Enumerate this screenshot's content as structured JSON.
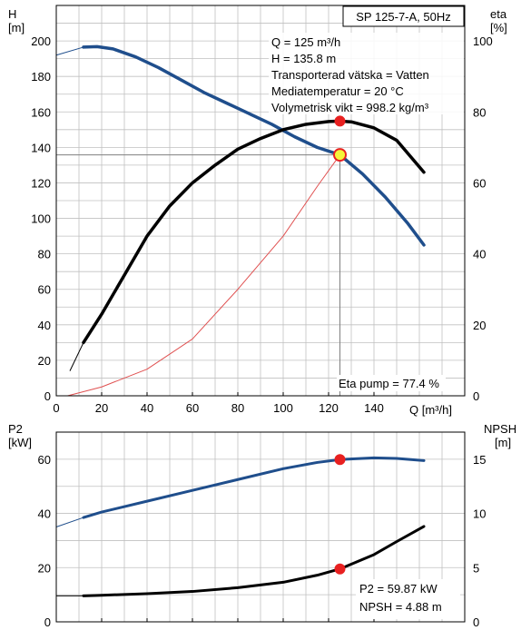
{
  "colors": {
    "head": "#1f4e8c",
    "efficiency": "#000000",
    "system_curve": "#e05050",
    "marker": "#e82020",
    "marker_duty": "#f5f53a",
    "grid": "#c0c0c0",
    "ref_line": "#808080"
  },
  "chart_data": [
    {
      "type": "line",
      "title": "SP 125-7-A, 50Hz",
      "xlabel": "Q [m³/h]",
      "xlim": [
        0,
        180
      ],
      "x_ticks": [
        0,
        20,
        40,
        60,
        80,
        100,
        120,
        140
      ],
      "left_axis": {
        "label_top": "H",
        "label_unit": "[m]",
        "ylim": [
          0,
          220
        ],
        "ticks": [
          0,
          20,
          40,
          60,
          80,
          100,
          120,
          140,
          160,
          180,
          200
        ]
      },
      "right_axis": {
        "label_top": "eta",
        "label_unit": "[%]",
        "ylim": [
          0,
          110
        ],
        "ticks": [
          0,
          20,
          40,
          60,
          80,
          100
        ]
      },
      "grid": true,
      "info_lines": [
        "Q = 125 m³/h",
        "H = 135.8 m",
        "Transporterad vätska = Vatten",
        "Mediatemperatur = 20 °C",
        "Volymetrisk vikt = 998.2 kg/m³"
      ],
      "eta_label": "Eta pump = 77.4 %",
      "series": [
        {
          "key": "head",
          "axis": "left",
          "faint_from": [
            0,
            12
          ],
          "x": [
            0,
            12,
            18,
            25,
            35,
            45,
            55,
            65,
            75,
            85,
            95,
            105,
            115,
            125,
            135,
            145,
            155,
            162
          ],
          "y": [
            192,
            196.5,
            196.8,
            195.5,
            191,
            185,
            178,
            171,
            165,
            159,
            153,
            146,
            140,
            135.8,
            125,
            112,
            97,
            85
          ]
        },
        {
          "key": "efficiency",
          "axis": "right",
          "faint_from": [
            6,
            12
          ],
          "x": [
            6,
            12,
            20,
            30,
            40,
            50,
            60,
            70,
            80,
            90,
            100,
            110,
            120,
            125,
            130,
            140,
            150,
            162
          ],
          "y": [
            7,
            15,
            23,
            34,
            45,
            53.5,
            60,
            65,
            69.5,
            72.5,
            75,
            76.5,
            77.3,
            77.4,
            77.2,
            75.5,
            72,
            63
          ]
        },
        {
          "key": "system_curve",
          "axis": "left",
          "x": [
            5,
            20,
            40,
            60,
            80,
            100,
            115,
            125
          ],
          "y": [
            0,
            5,
            15,
            32,
            60,
            90,
            118,
            135.8
          ]
        }
      ],
      "markers": [
        {
          "x": 125,
          "y": 135.8,
          "axis": "left",
          "style": "duty"
        },
        {
          "x": 125,
          "y": 77.4,
          "axis": "right",
          "style": "point"
        }
      ],
      "duty_q": 125,
      "duty_h": 135.8
    },
    {
      "type": "line",
      "xlim": [
        0,
        180
      ],
      "x_ticks": [
        0,
        20,
        40,
        60,
        80,
        100,
        120,
        140
      ],
      "left_axis": {
        "label_top": "P2",
        "label_unit": "[kW]",
        "ylim": [
          0,
          70
        ],
        "ticks": [
          0,
          20,
          40,
          60
        ]
      },
      "right_axis": {
        "label_top": "NPSH",
        "label_unit": "[m]",
        "ylim": [
          0,
          17.5
        ],
        "ticks": [
          0,
          5,
          10,
          15
        ]
      },
      "grid": true,
      "info_lines": [
        "P2 = 59.87 kW",
        "NPSH = 4.88 m"
      ],
      "series": [
        {
          "key": "p2",
          "axis": "left",
          "faint_from": [
            0,
            12
          ],
          "x": [
            0,
            12,
            20,
            40,
            60,
            80,
            100,
            115,
            125,
            140,
            150,
            162
          ],
          "y": [
            35,
            38.5,
            40.5,
            44.5,
            48.5,
            52.5,
            56.5,
            58.8,
            59.87,
            60.5,
            60.3,
            59.5
          ]
        },
        {
          "key": "npsh",
          "axis": "right",
          "faint_from": [
            0,
            12
          ],
          "x": [
            0,
            12,
            20,
            40,
            60,
            80,
            100,
            115,
            125,
            140,
            150,
            162
          ],
          "y": [
            2.4,
            2.4,
            2.45,
            2.6,
            2.8,
            3.15,
            3.65,
            4.3,
            4.88,
            6.2,
            7.4,
            8.8
          ]
        }
      ],
      "markers": [
        {
          "x": 125,
          "y": 59.87,
          "axis": "left",
          "style": "point"
        },
        {
          "x": 125,
          "y": 4.88,
          "axis": "right",
          "style": "point"
        }
      ]
    }
  ]
}
